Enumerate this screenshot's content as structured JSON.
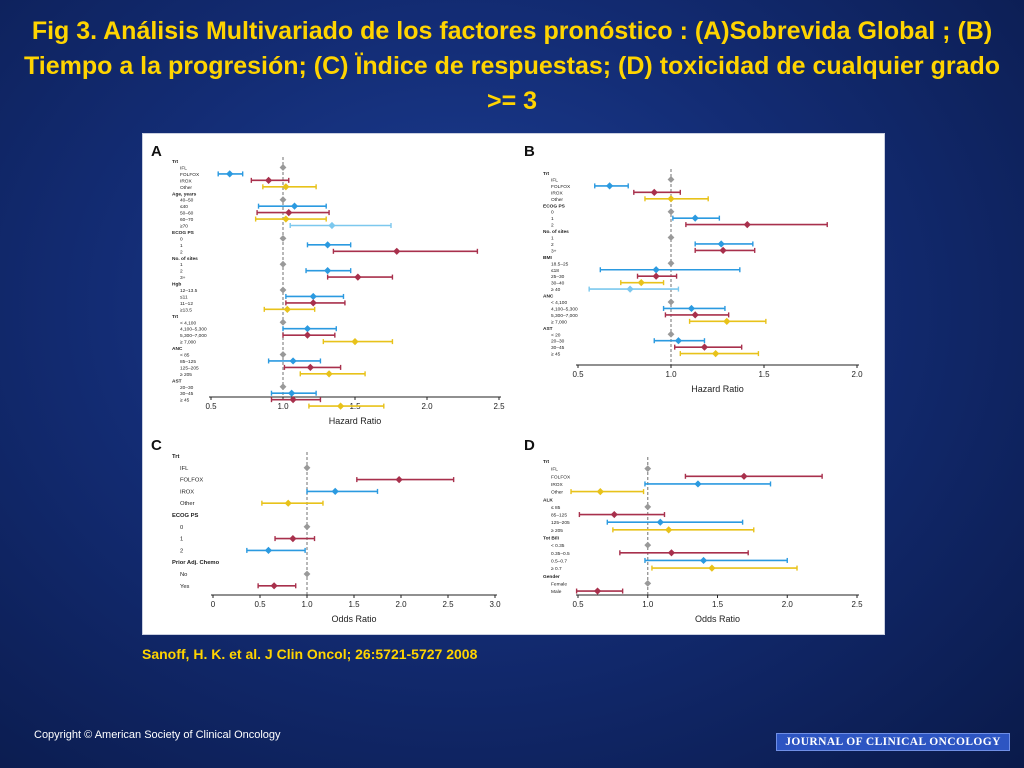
{
  "slide": {
    "title": "Fig 3. Análisis Multivariado de los factores  pronóstico : (A)Sobrevida Global ; (B) Tiempo a la progresión; (C) Ïndice de respuestas; (D) toxicidad de  cualquier grado >= 3",
    "citation": "Sanoff, H. K. et al. J Clin Oncol; 26:5721-5727 2008",
    "copyright": "Copyright © American Society of Clinical Oncology",
    "journal_banner": "JOURNAL OF CLINICAL ONCOLOGY"
  },
  "colors": {
    "title": "#ffd400",
    "background": "#132c74",
    "IFL": "#999999",
    "FOLFOX": "#2b9ae0",
    "IROX": "#a8304c",
    "Other": "#e8c21a",
    "light_blue": "#7cc8ee"
  },
  "chart_data": [
    {
      "panel": "A",
      "type": "forest",
      "xlabel": "Hazard Ratio",
      "xlim": [
        0.5,
        2.5
      ],
      "ticks": [
        0.5,
        1.0,
        1.5,
        2.0,
        2.5
      ],
      "reference": 1.0,
      "ticklabels": [
        "0.5",
        "1.0",
        "1.5",
        "2.0",
        "2.5"
      ],
      "rows": [
        {
          "label": "Trt",
          "header": true
        },
        {
          "label": "IFL",
          "est": 1.0,
          "lo": 1.0,
          "hi": 1.0,
          "color": "#999999"
        },
        {
          "label": "FOLFOX",
          "est": 0.63,
          "lo": 0.55,
          "hi": 0.72,
          "color": "#2b9ae0"
        },
        {
          "label": "IROX",
          "est": 0.9,
          "lo": 0.78,
          "hi": 1.04,
          "color": "#a8304c"
        },
        {
          "label": "Other",
          "est": 1.02,
          "lo": 0.86,
          "hi": 1.23,
          "color": "#e8c21a"
        },
        {
          "label": "Age, years",
          "header": true
        },
        {
          "label": "40–50",
          "est": 1.0,
          "lo": 1.0,
          "hi": 1.0,
          "color": "#999999"
        },
        {
          "label": "≤40",
          "est": 1.08,
          "lo": 0.83,
          "hi": 1.3,
          "color": "#2b9ae0"
        },
        {
          "label": "50–60",
          "est": 1.04,
          "lo": 0.82,
          "hi": 1.32,
          "color": "#a8304c"
        },
        {
          "label": "60–70",
          "est": 1.02,
          "lo": 0.81,
          "hi": 1.3,
          "color": "#e8c21a"
        },
        {
          "label": "≥70",
          "est": 1.34,
          "lo": 1.05,
          "hi": 1.75,
          "color": "#7cc8ee"
        },
        {
          "label": "ECOG PS",
          "header": true
        },
        {
          "label": "0",
          "est": 1.0,
          "lo": 1.0,
          "hi": 1.0,
          "color": "#999999"
        },
        {
          "label": "1",
          "est": 1.31,
          "lo": 1.17,
          "hi": 1.47,
          "color": "#2b9ae0"
        },
        {
          "label": "2",
          "est": 1.79,
          "lo": 1.35,
          "hi": 2.35,
          "color": "#a8304c"
        },
        {
          "label": "No. of sites",
          "header": true
        },
        {
          "label": "1",
          "est": 1.0,
          "lo": 1.0,
          "hi": 1.0,
          "color": "#999999"
        },
        {
          "label": "2",
          "est": 1.31,
          "lo": 1.16,
          "hi": 1.47,
          "color": "#2b9ae0"
        },
        {
          "label": "3+",
          "est": 1.52,
          "lo": 1.31,
          "hi": 1.76,
          "color": "#a8304c"
        },
        {
          "label": "Hgb",
          "header": true
        },
        {
          "label": "12–13.5",
          "est": 1.0,
          "lo": 1.0,
          "hi": 1.0,
          "color": "#999999"
        },
        {
          "label": "≤11",
          "est": 1.21,
          "lo": 1.02,
          "hi": 1.42,
          "color": "#2b9ae0"
        },
        {
          "label": "11–12",
          "est": 1.21,
          "lo": 1.02,
          "hi": 1.43,
          "color": "#a8304c"
        },
        {
          "label": "≥13.5",
          "est": 1.03,
          "lo": 0.87,
          "hi": 1.22,
          "color": "#e8c21a"
        },
        {
          "label": "Trt",
          "header": true
        },
        {
          "label": "< 4,100",
          "est": 1.0,
          "lo": 1.0,
          "hi": 1.0,
          "color": "#999999"
        },
        {
          "label": "4,100–5,300",
          "est": 1.17,
          "lo": 1.0,
          "hi": 1.37,
          "color": "#2b9ae0"
        },
        {
          "label": "5,300–7,000",
          "est": 1.17,
          "lo": 1.0,
          "hi": 1.36,
          "color": "#a8304c"
        },
        {
          "label": "≥ 7,000",
          "est": 1.5,
          "lo": 1.28,
          "hi": 1.76,
          "color": "#e8c21a"
        },
        {
          "label": "ANC",
          "header": true
        },
        {
          "label": "< 85",
          "est": 1.0,
          "lo": 1.0,
          "hi": 1.0,
          "color": "#999999"
        },
        {
          "label": "85–125",
          "est": 1.07,
          "lo": 0.9,
          "hi": 1.26,
          "color": "#2b9ae0"
        },
        {
          "label": "125–205",
          "est": 1.19,
          "lo": 1.01,
          "hi": 1.4,
          "color": "#a8304c"
        },
        {
          "label": "≥ 205",
          "est": 1.32,
          "lo": 1.12,
          "hi": 1.57,
          "color": "#e8c21a"
        },
        {
          "label": "AST",
          "header": true
        },
        {
          "label": "20–30",
          "est": 1.0,
          "lo": 1.0,
          "hi": 1.0,
          "color": "#999999"
        },
        {
          "label": "30–45",
          "est": 1.06,
          "lo": 0.92,
          "hi": 1.23,
          "color": "#2b9ae0"
        },
        {
          "label": "≥ 45",
          "est": 1.07,
          "lo": 0.92,
          "hi": 1.26,
          "color": "#a8304c"
        },
        {
          "label": "",
          "est": 1.4,
          "lo": 1.18,
          "hi": 1.7,
          "color": "#e8c21a"
        }
      ]
    },
    {
      "panel": "B",
      "type": "forest",
      "xlabel": "Hazard Ratio",
      "xlim": [
        0.5,
        2.0
      ],
      "ticks": [
        0.5,
        1.0,
        1.5,
        2.0
      ],
      "reference": 1.0,
      "ticklabels": [
        "0.5",
        "1.0",
        "1.5",
        "2.0"
      ],
      "rows": [
        {
          "label": "Trt",
          "header": true
        },
        {
          "label": "IFL",
          "est": 1.0,
          "lo": 1.0,
          "hi": 1.0,
          "color": "#999999"
        },
        {
          "label": "FOLFOX",
          "est": 0.67,
          "lo": 0.59,
          "hi": 0.77,
          "color": "#2b9ae0"
        },
        {
          "label": "IROX",
          "est": 0.91,
          "lo": 0.8,
          "hi": 1.05,
          "color": "#a8304c"
        },
        {
          "label": "Other",
          "est": 1.0,
          "lo": 0.86,
          "hi": 1.2,
          "color": "#e8c21a"
        },
        {
          "label": "ECOG PS",
          "header": true
        },
        {
          "label": "0",
          "est": 1.0,
          "lo": 1.0,
          "hi": 1.0,
          "color": "#999999"
        },
        {
          "label": "1",
          "est": 1.13,
          "lo": 1.01,
          "hi": 1.26,
          "color": "#2b9ae0"
        },
        {
          "label": "2",
          "est": 1.41,
          "lo": 1.08,
          "hi": 1.84,
          "color": "#a8304c"
        },
        {
          "label": "No. of sites",
          "header": true
        },
        {
          "label": "1",
          "est": 1.0,
          "lo": 1.0,
          "hi": 1.0,
          "color": "#999999"
        },
        {
          "label": "2",
          "est": 1.27,
          "lo": 1.13,
          "hi": 1.44,
          "color": "#2b9ae0"
        },
        {
          "label": "3+",
          "est": 1.28,
          "lo": 1.13,
          "hi": 1.45,
          "color": "#a8304c"
        },
        {
          "label": "BMI",
          "header": true
        },
        {
          "label": "18.5–25",
          "est": 1.0,
          "lo": 1.0,
          "hi": 1.0,
          "color": "#999999"
        },
        {
          "label": "≤18",
          "est": 0.92,
          "lo": 0.62,
          "hi": 1.37,
          "color": "#2b9ae0"
        },
        {
          "label": "25–30",
          "est": 0.92,
          "lo": 0.82,
          "hi": 1.03,
          "color": "#a8304c"
        },
        {
          "label": "30–40",
          "est": 0.84,
          "lo": 0.73,
          "hi": 0.96,
          "color": "#e8c21a"
        },
        {
          "label": "≥ 40",
          "est": 0.78,
          "lo": 0.56,
          "hi": 1.04,
          "color": "#7cc8ee"
        },
        {
          "label": "ANC",
          "header": true
        },
        {
          "label": "< 4,100",
          "est": 1.0,
          "lo": 1.0,
          "hi": 1.0,
          "color": "#999999"
        },
        {
          "label": "4,100–5,300",
          "est": 1.11,
          "lo": 0.96,
          "hi": 1.29,
          "color": "#2b9ae0"
        },
        {
          "label": "5,300–7,000",
          "est": 1.13,
          "lo": 0.97,
          "hi": 1.31,
          "color": "#a8304c"
        },
        {
          "label": "≥ 7,000",
          "est": 1.3,
          "lo": 1.1,
          "hi": 1.51,
          "color": "#e8c21a"
        },
        {
          "label": "AST",
          "header": true
        },
        {
          "label": "< 20",
          "est": 1.0,
          "lo": 1.0,
          "hi": 1.0,
          "color": "#999999"
        },
        {
          "label": "20–30",
          "est": 1.04,
          "lo": 0.91,
          "hi": 1.18,
          "color": "#2b9ae0"
        },
        {
          "label": "30–45",
          "est": 1.18,
          "lo": 1.02,
          "hi": 1.38,
          "color": "#a8304c"
        },
        {
          "label": "≥ 45",
          "est": 1.24,
          "lo": 1.05,
          "hi": 1.47,
          "color": "#e8c21a"
        }
      ]
    },
    {
      "panel": "C",
      "type": "forest",
      "xlabel": "Odds Ratio",
      "xlim": [
        0,
        3.0
      ],
      "ticks": [
        0,
        0.5,
        1.0,
        1.5,
        2.0,
        2.5,
        3.0
      ],
      "reference": 1.0,
      "ticklabels": [
        "0",
        "0.5",
        "1.0",
        "1.5",
        "2.0",
        "2.5",
        "3.0"
      ],
      "rows": [
        {
          "label": "Trt",
          "header": true
        },
        {
          "label": "IFL",
          "est": 1.0,
          "lo": 1.0,
          "hi": 1.0,
          "color": "#999999"
        },
        {
          "label": "FOLFOX",
          "est": 1.98,
          "lo": 1.53,
          "hi": 2.56,
          "color": "#a8304c"
        },
        {
          "label": "IROX",
          "est": 1.3,
          "lo": 1.0,
          "hi": 1.75,
          "color": "#2b9ae0"
        },
        {
          "label": "Other",
          "est": 0.8,
          "lo": 0.52,
          "hi": 1.17,
          "color": "#e8c21a"
        },
        {
          "label": "ECOG PS",
          "header": true
        },
        {
          "label": "0",
          "est": 1.0,
          "lo": 1.0,
          "hi": 1.0,
          "color": "#999999"
        },
        {
          "label": "1",
          "est": 0.85,
          "lo": 0.66,
          "hi": 1.08,
          "color": "#a8304c"
        },
        {
          "label": "2",
          "est": 0.59,
          "lo": 0.36,
          "hi": 0.98,
          "color": "#2b9ae0"
        },
        {
          "label": "Prior Adj. Chemo",
          "header": true
        },
        {
          "label": "No",
          "est": 1.0,
          "lo": 1.0,
          "hi": 1.0,
          "color": "#999999"
        },
        {
          "label": "Yes",
          "est": 0.65,
          "lo": 0.48,
          "hi": 0.88,
          "color": "#a8304c"
        }
      ]
    },
    {
      "panel": "D",
      "type": "forest",
      "xlabel": "Odds Ratio",
      "xlim": [
        0.5,
        2.5
      ],
      "ticks": [
        0.5,
        1.0,
        1.5,
        2.0,
        2.5
      ],
      "reference": 1.0,
      "ticklabels": [
        "0.5",
        "1.0",
        "1.5",
        "2.0",
        "2.5"
      ],
      "rows": [
        {
          "label": "Trt",
          "header": true
        },
        {
          "label": "IFL",
          "est": 1.0,
          "lo": 1.0,
          "hi": 1.0,
          "color": "#999999"
        },
        {
          "label": "FOLFOX",
          "est": 1.69,
          "lo": 1.27,
          "hi": 2.25,
          "color": "#a8304c"
        },
        {
          "label": "IROX",
          "est": 1.36,
          "lo": 0.98,
          "hi": 1.88,
          "color": "#2b9ae0"
        },
        {
          "label": "Other",
          "est": 0.66,
          "lo": 0.45,
          "hi": 0.97,
          "color": "#e8c21a"
        },
        {
          "label": "ALK",
          "header": true
        },
        {
          "label": "≤ 85",
          "est": 1.0,
          "lo": 1.0,
          "hi": 1.0,
          "color": "#999999"
        },
        {
          "label": "85–125",
          "est": 0.76,
          "lo": 0.51,
          "hi": 1.12,
          "color": "#a8304c"
        },
        {
          "label": "125–205",
          "est": 1.09,
          "lo": 0.71,
          "hi": 1.68,
          "color": "#2b9ae0"
        },
        {
          "label": "≥ 205",
          "est": 1.15,
          "lo": 0.75,
          "hi": 1.76,
          "color": "#e8c21a"
        },
        {
          "label": "Tot Bili",
          "header": true
        },
        {
          "label": "< 0.35",
          "est": 1.0,
          "lo": 1.0,
          "hi": 1.0,
          "color": "#999999"
        },
        {
          "label": "0.35–0.5",
          "est": 1.17,
          "lo": 0.8,
          "hi": 1.72,
          "color": "#a8304c"
        },
        {
          "label": "0.5–0.7",
          "est": 1.4,
          "lo": 0.98,
          "hi": 2.0,
          "color": "#2b9ae0"
        },
        {
          "label": "≥ 0.7",
          "est": 1.46,
          "lo": 1.03,
          "hi": 2.07,
          "color": "#e8c21a"
        },
        {
          "label": "Gender",
          "header": true
        },
        {
          "label": "Female",
          "est": 1.0,
          "lo": 1.0,
          "hi": 1.0,
          "color": "#999999"
        },
        {
          "label": "Male",
          "est": 0.64,
          "lo": 0.49,
          "hi": 0.82,
          "color": "#a8304c"
        }
      ]
    }
  ]
}
